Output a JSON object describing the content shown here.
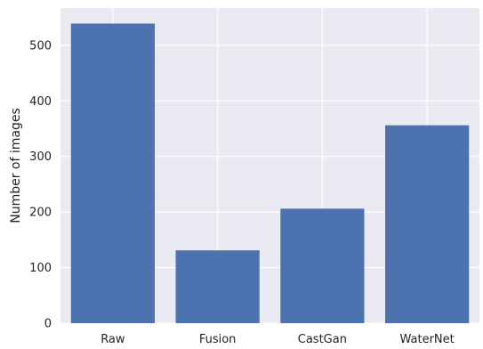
{
  "chart_data": {
    "type": "bar",
    "title": "",
    "xlabel": "",
    "ylabel": "Number of images",
    "categories": [
      "Raw",
      "Fusion",
      "CastGan",
      "WaterNet"
    ],
    "values": [
      539,
      131,
      206,
      356
    ],
    "ylim": [
      0,
      567
    ],
    "yticks": [
      0,
      100,
      200,
      300,
      400,
      500
    ],
    "grid": true,
    "legend": "none",
    "colors": {
      "bar": "#4c72b0",
      "plot_background": "#eaeaf2",
      "grid": "#ffffff",
      "text": "#222222"
    }
  }
}
